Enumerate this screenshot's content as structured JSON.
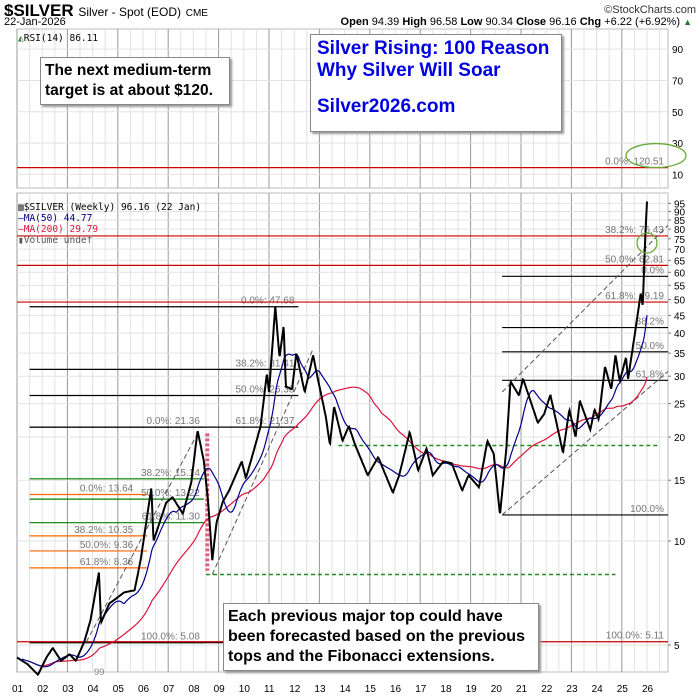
{
  "header": {
    "symbol": "$SILVER",
    "description": "Silver - Spot (EOD)",
    "exchange": "CME",
    "date": "22-Jan-2026",
    "brand": "©StockCharts.com",
    "open_label": "Open",
    "open": "94.39",
    "high_label": "High",
    "high": "96.58",
    "low_label": "Low",
    "low": "90.34",
    "close_label": "Close",
    "close": "96.16",
    "chg_label": "Chg",
    "chg": "+6.22 (+6.92%)"
  },
  "rsi_panel": {
    "label": "RSI(14) 86.11",
    "ticks": [
      90,
      70,
      50,
      30,
      10
    ],
    "ylim": [
      0,
      100
    ]
  },
  "legend": {
    "price": "$SILVER (Weekly) 96.16 (22 Jan)",
    "ma50": "MA(50) 44.77",
    "ma200": "MA(200) 29.79",
    "volume": "Volume undef"
  },
  "annotations": {
    "target_box": [
      "The next medium-term",
      "target is at about $120."
    ],
    "promo_box": [
      "Silver Rising: 100 Reason",
      "Why Silver Will Soar",
      "",
      "Silver2026.com"
    ],
    "forecast_box": [
      "Each previous major top could have",
      "been forecasted based on the previous",
      "tops and the Fibonacci extensions."
    ],
    "low_marker": "99"
  },
  "colors": {
    "price": "#000000",
    "ma50": "#00008b",
    "ma200": "#dc143c",
    "fib_red": "#cc0000",
    "fib_orange": "#ff6600",
    "fib_green": "#008000",
    "fib_black": "#000000",
    "grid": "#e2e2e2",
    "ellipse": "#66aa33"
  },
  "chart_data": {
    "type": "line",
    "scale": "log",
    "ylim": [
      3.9,
      130
    ],
    "xlim": [
      "2001-01",
      "2026-12"
    ],
    "yticks": [
      5,
      10,
      15,
      20,
      25,
      30,
      35,
      40,
      45,
      50,
      55,
      60,
      65,
      70,
      75,
      80,
      85,
      90,
      95
    ],
    "xticks": [
      "01",
      "02",
      "03",
      "04",
      "05",
      "06",
      "07",
      "08",
      "09",
      "10",
      "11",
      "12",
      "13",
      "14",
      "15",
      "16",
      "17",
      "18",
      "19",
      "20",
      "21",
      "22",
      "23",
      "24",
      "25",
      "26"
    ],
    "grid": true,
    "series": [
      {
        "name": "$SILVER (Weekly)",
        "points": [
          [
            "2001-01",
            4.6
          ],
          [
            "2001-06",
            4.4
          ],
          [
            "2001-11",
            4.1
          ],
          [
            "2002-03",
            4.6
          ],
          [
            "2002-06",
            4.9
          ],
          [
            "2002-10",
            4.5
          ],
          [
            "2003-02",
            4.7
          ],
          [
            "2003-05",
            4.5
          ],
          [
            "2003-09",
            5.1
          ],
          [
            "2003-12",
            5.9
          ],
          [
            "2004-04",
            8.1
          ],
          [
            "2004-05",
            5.8
          ],
          [
            "2004-09",
            6.6
          ],
          [
            "2004-12",
            6.8
          ],
          [
            "2005-04",
            7.1
          ],
          [
            "2005-09",
            7.2
          ],
          [
            "2005-12",
            8.9
          ],
          [
            "2006-05",
            14.3
          ],
          [
            "2006-06",
            10.0
          ],
          [
            "2006-12",
            12.9
          ],
          [
            "2007-03",
            13.4
          ],
          [
            "2007-08",
            12.0
          ],
          [
            "2007-12",
            14.8
          ],
          [
            "2008-03",
            20.9
          ],
          [
            "2008-06",
            17.0
          ],
          [
            "2008-08",
            13.0
          ],
          [
            "2008-10",
            8.8
          ],
          [
            "2008-12",
            11.3
          ],
          [
            "2009-03",
            13.0
          ],
          [
            "2009-06",
            14.0
          ],
          [
            "2009-12",
            17.0
          ],
          [
            "2010-02",
            15.2
          ],
          [
            "2010-06",
            18.5
          ],
          [
            "2010-09",
            21.5
          ],
          [
            "2010-12",
            30.6
          ],
          [
            "2011-01",
            27.0
          ],
          [
            "2011-04",
            47.68
          ],
          [
            "2011-06",
            34.0
          ],
          [
            "2011-08",
            42.0
          ],
          [
            "2011-09",
            28.0
          ],
          [
            "2011-12",
            27.5
          ],
          [
            "2012-02",
            35.0
          ],
          [
            "2012-06",
            27.0
          ],
          [
            "2012-10",
            34.5
          ],
          [
            "2012-12",
            30.0
          ],
          [
            "2013-04",
            23.0
          ],
          [
            "2013-06",
            19.0
          ],
          [
            "2013-08",
            24.5
          ],
          [
            "2013-12",
            19.5
          ],
          [
            "2014-03",
            21.5
          ],
          [
            "2014-06",
            19.0
          ],
          [
            "2014-12",
            15.5
          ],
          [
            "2015-05",
            17.5
          ],
          [
            "2015-12",
            13.8
          ],
          [
            "2016-03",
            15.5
          ],
          [
            "2016-08",
            20.7
          ],
          [
            "2016-12",
            16.0
          ],
          [
            "2017-04",
            18.5
          ],
          [
            "2017-07",
            15.5
          ],
          [
            "2017-12",
            17.0
          ],
          [
            "2018-04",
            16.8
          ],
          [
            "2018-09",
            14.0
          ],
          [
            "2018-12",
            15.5
          ],
          [
            "2019-05",
            14.3
          ],
          [
            "2019-09",
            19.5
          ],
          [
            "2019-12",
            17.9
          ],
          [
            "2020-03",
            11.9
          ],
          [
            "2020-06",
            18.5
          ],
          [
            "2020-08",
            29.0
          ],
          [
            "2020-12",
            26.4
          ],
          [
            "2021-02",
            29.5
          ],
          [
            "2021-09",
            22.0
          ],
          [
            "2021-12",
            23.3
          ],
          [
            "2022-03",
            26.5
          ],
          [
            "2022-09",
            18.0
          ],
          [
            "2022-12",
            24.0
          ],
          [
            "2023-03",
            20.0
          ],
          [
            "2023-05",
            25.5
          ],
          [
            "2023-10",
            21.0
          ],
          [
            "2023-12",
            24.0
          ],
          [
            "2024-02",
            22.5
          ],
          [
            "2024-05",
            32.0
          ],
          [
            "2024-08",
            27.5
          ],
          [
            "2024-10",
            34.5
          ],
          [
            "2024-12",
            29.0
          ],
          [
            "2025-03",
            34.0
          ],
          [
            "2025-04",
            29.5
          ],
          [
            "2025-07",
            39.0
          ],
          [
            "2025-10",
            52.0
          ],
          [
            "2025-11",
            48.0
          ],
          [
            "2025-12",
            72.0
          ],
          [
            "2026-01",
            96.16
          ]
        ]
      }
    ],
    "fib_levels": [
      {
        "group": "orange",
        "from": "2001-07",
        "to": "2006-03",
        "levels": [
          {
            "label": "0.0%: 13.64",
            "price": 13.64
          },
          {
            "label": "38.2%: 10.35",
            "price": 10.35
          },
          {
            "label": "50.0%: 9.36",
            "price": 9.36
          },
          {
            "label": "61.8%: 8.36",
            "price": 8.36
          }
        ]
      },
      {
        "group": "green",
        "from": "2001-07",
        "to": "2008-06",
        "levels": [
          {
            "label": "0.0%: 21.36",
            "price": 21.36
          },
          {
            "label": "38.2%: 15.14",
            "price": 15.14
          },
          {
            "label": "50.0%: 13.22",
            "price": 13.22
          },
          {
            "label": "61.8%: 11.30",
            "price": 11.3
          },
          {
            "label": "100.0%: 5.08",
            "price": 5.08
          }
        ]
      },
      {
        "group": "black",
        "from": "2001-07",
        "to": "2012-03",
        "levels": [
          {
            "label": "0.0%: 47.68",
            "price": 47.68
          },
          {
            "label": "38.2%: 31.41",
            "price": 31.41
          },
          {
            "label": "50.0%: 26.38",
            "price": 26.38
          },
          {
            "label": "61.8%: 21.37",
            "price": 21.37
          },
          {
            "label": "100.0%: 5.08",
            "price": 5.08
          }
        ]
      },
      {
        "group": "red",
        "from": "2001-01",
        "to": "2026-11",
        "levels": [
          {
            "label": "0.0%: 120.51",
            "price": 120.51
          },
          {
            "label": "38.2%: 76.43",
            "price": 76.43
          },
          {
            "label": "50.0%: 62.81",
            "price": 62.81
          },
          {
            "label": "61.8%: 49.19",
            "price": 49.19
          },
          {
            "label": "100.0%: 5.11",
            "price": 5.11
          }
        ]
      },
      {
        "group": "black",
        "from": "2020-04",
        "to": "2026-11",
        "levels": [
          {
            "label": "0.0%",
            "price": 58.4
          },
          {
            "label": "38.2%",
            "price": 41.5
          },
          {
            "label": "50.0%",
            "price": 35.3
          },
          {
            "label": "61.8%",
            "price": 29.2
          },
          {
            "label": "100.0%",
            "price": 11.9
          }
        ]
      }
    ],
    "support_lines": [
      {
        "price": 18.9,
        "from": "2013-10",
        "to": "2026-07"
      },
      {
        "price": 8.0,
        "from": "2008-07",
        "to": "2024-10"
      }
    ],
    "trendlines": [
      [
        [
          "2003-10",
          5.1
        ],
        [
          "2008-03",
          20.5
        ]
      ],
      [
        [
          "2008-10",
          8.0
        ],
        [
          "2012-10",
          36.0
        ]
      ],
      [
        [
          "2020-04",
          11.9
        ],
        [
          "2026-11",
          31.0
        ]
      ],
      [
        [
          "2020-04",
          27.0
        ],
        [
          "2026-11",
          82.0
        ]
      ]
    ]
  }
}
